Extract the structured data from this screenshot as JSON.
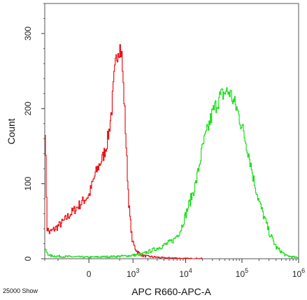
{
  "chart_data": {
    "type": "line",
    "xlabel": "APC R660-APC-A",
    "ylabel": "Count",
    "footer_text": "25000 Show",
    "x_scale": "biexponential",
    "xlim": [
      -1000,
      1000000
    ],
    "ylim": [
      0,
      340
    ],
    "x_ticks": [
      {
        "value": 0,
        "base": "0",
        "exp": ""
      },
      {
        "value": 1000,
        "base": "10",
        "exp": "3"
      },
      {
        "value": 10000,
        "base": "10",
        "exp": "4"
      },
      {
        "value": 100000,
        "base": "10",
        "exp": "5"
      },
      {
        "value": 1000000,
        "base": "10",
        "exp": "6"
      }
    ],
    "y_ticks": [
      0,
      100,
      200,
      300
    ],
    "grid": false,
    "legend": "none",
    "series": [
      {
        "color": "#e8141a",
        "x": [
          -1000,
          -900,
          -800,
          -600,
          -400,
          -200,
          0,
          50,
          100,
          150,
          200,
          250,
          300,
          350,
          400,
          450,
          500,
          550,
          600,
          650,
          700,
          750,
          800,
          850,
          900,
          950,
          1000,
          1100,
          1200,
          1400,
          1600,
          2000,
          3000,
          4000,
          6000,
          10000,
          20000
        ],
        "y": [
          175,
          40,
          35,
          40,
          48,
          62,
          85,
          110,
          125,
          135,
          150,
          170,
          200,
          240,
          265,
          280,
          282,
          270,
          230,
          195,
          150,
          110,
          75,
          55,
          40,
          25,
          20,
          14,
          10,
          6,
          4,
          3,
          2,
          1,
          1,
          0,
          0
        ]
      },
      {
        "color": "#22dd22",
        "x": [
          -1000,
          -800,
          -400,
          0,
          400,
          800,
          1500,
          3000,
          4000,
          6000,
          8000,
          10000,
          15000,
          20000,
          30000,
          40000,
          50000,
          60000,
          70000,
          80000,
          100000,
          130000,
          160000,
          200000,
          300000,
          400000,
          600000,
          1000000
        ],
        "y": [
          12,
          4,
          3,
          2,
          3,
          4,
          6,
          14,
          18,
          25,
          38,
          60,
          100,
          150,
          195,
          215,
          222,
          222,
          210,
          200,
          175,
          140,
          105,
          75,
          35,
          15,
          4,
          1
        ]
      }
    ]
  }
}
